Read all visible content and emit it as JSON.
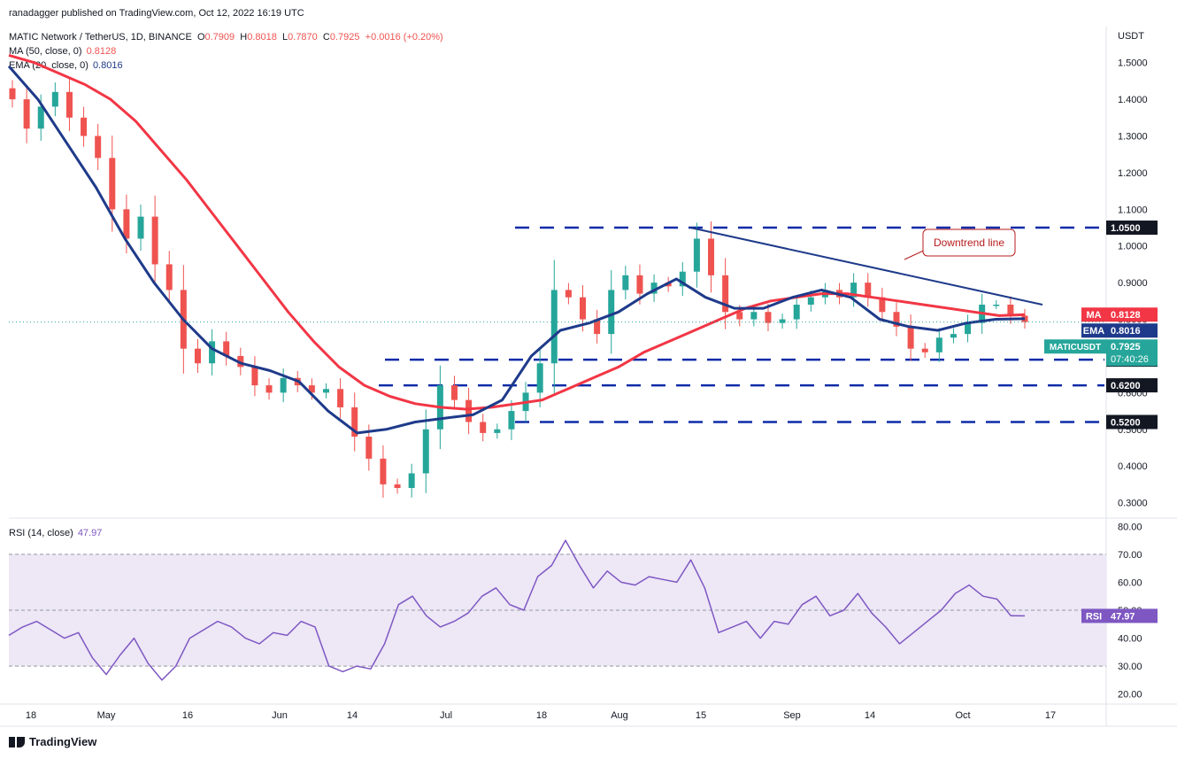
{
  "header": {
    "published": "ranadagger published on TradingView.com, Oct 12, 2022 16:19 UTC",
    "symbol": "MATIC Network / TetherUS, 1D, BINANCE",
    "ohlc": {
      "o_label": "O",
      "o": "0.7909",
      "h_label": "H",
      "h": "0.8018",
      "l_label": "L",
      "l": "0.7870",
      "c_label": "C",
      "c": "0.7925",
      "change": "+0.0016 (+0.20%)"
    },
    "ma_label": "MA (50, close, 0)",
    "ma_value": "0.8128",
    "ema_label": "EMA (20, close, 0)",
    "ema_value": "0.8016",
    "rsi_label": "RSI (14, close)",
    "rsi_value": "47.97"
  },
  "footer": {
    "brand": "TradingView"
  },
  "colors": {
    "up": "#26a69a",
    "down": "#ef5350",
    "ma": "#f23645",
    "ema": "#1e3a8a",
    "levels": "#0d2ca8",
    "rsi": "#7e57c2",
    "rsi_bg": "#ede7f6"
  },
  "chart_data": {
    "type": "line",
    "title": "",
    "price_axis_label": "USDT",
    "y_ticks": [
      "1.5000",
      "1.4000",
      "1.3000",
      "1.2000",
      "1.1000",
      "1.0000",
      "0.9000",
      "0.8000",
      "0.7000",
      "0.6000",
      "0.5000",
      "0.4000",
      "0.3000"
    ],
    "ylim": [
      0.27,
      1.55
    ],
    "x_ticks": [
      "18",
      "May",
      "16",
      "Jun",
      "14",
      "Jul",
      "18",
      "Aug",
      "15",
      "Sep",
      "14",
      "Oct",
      "17"
    ],
    "series": [
      {
        "name": "MATICUSDT",
        "values": [
          1.4,
          1.32,
          1.38,
          1.42,
          1.35,
          1.3,
          1.24,
          1.1,
          1.02,
          1.08,
          0.95,
          0.88,
          0.72,
          0.68,
          0.74,
          0.7,
          0.67,
          0.62,
          0.6,
          0.64,
          0.62,
          0.6,
          0.61,
          0.56,
          0.48,
          0.42,
          0.35,
          0.34,
          0.38,
          0.5,
          0.62,
          0.58,
          0.52,
          0.49,
          0.5,
          0.55,
          0.6,
          0.68,
          0.88,
          0.86,
          0.8,
          0.76,
          0.88,
          0.92,
          0.87,
          0.9,
          0.89,
          0.93,
          1.02,
          0.92,
          0.82,
          0.8,
          0.82,
          0.79,
          0.8,
          0.84,
          0.86,
          0.88,
          0.86,
          0.9,
          0.86,
          0.82,
          0.78,
          0.72,
          0.71,
          0.75,
          0.76,
          0.79,
          0.84,
          0.84,
          0.81,
          0.7925
        ]
      },
      {
        "name": "MA",
        "values": [
          1.52,
          1.5,
          1.47,
          1.44,
          1.4,
          1.34,
          1.26,
          1.18,
          1.09,
          1.0,
          0.91,
          0.82,
          0.74,
          0.67,
          0.62,
          0.59,
          0.57,
          0.56,
          0.555,
          0.56,
          0.57,
          0.58,
          0.61,
          0.64,
          0.67,
          0.71,
          0.74,
          0.77,
          0.8,
          0.83,
          0.85,
          0.86,
          0.87,
          0.87,
          0.86,
          0.85,
          0.84,
          0.83,
          0.82,
          0.81,
          0.8128
        ]
      },
      {
        "name": "EMA",
        "values": [
          1.49,
          1.4,
          1.28,
          1.16,
          1.02,
          0.9,
          0.8,
          0.72,
          0.68,
          0.66,
          0.63,
          0.55,
          0.49,
          0.5,
          0.52,
          0.53,
          0.54,
          0.58,
          0.7,
          0.77,
          0.79,
          0.82,
          0.87,
          0.91,
          0.86,
          0.83,
          0.83,
          0.86,
          0.88,
          0.86,
          0.8,
          0.78,
          0.77,
          0.79,
          0.8,
          0.8016
        ]
      }
    ],
    "levels": [
      {
        "value": 1.05,
        "label": "1.0500"
      },
      {
        "value": 0.69,
        "label": "0.6900"
      },
      {
        "value": 0.62,
        "label": "0.6200"
      },
      {
        "value": 0.52,
        "label": "0.5200"
      }
    ],
    "downtrend": {
      "start": 1.05,
      "end": 0.84
    },
    "annotation": "Downtrend line",
    "price_tags": {
      "ma": {
        "label": "MA",
        "value": "0.8128"
      },
      "ema": {
        "label": "EMA",
        "value": "0.8016"
      },
      "last": {
        "label": "MATICUSDT",
        "value": "0.7925",
        "countdown": "07:40:26"
      }
    },
    "rsi": {
      "y_ticks": [
        "80.00",
        "70.00",
        "60.00",
        "50.00",
        "40.00",
        "30.00",
        "20.00"
      ],
      "ylim": [
        18,
        82
      ],
      "band": [
        30,
        70
      ],
      "midline": 50,
      "values": [
        41,
        44,
        46,
        43,
        40,
        42,
        33,
        27,
        34,
        40,
        31,
        25,
        30,
        40,
        43,
        46,
        44,
        40,
        38,
        42,
        41,
        46,
        44,
        30,
        28,
        30,
        29,
        38,
        52,
        55,
        48,
        44,
        46,
        49,
        55,
        58,
        52,
        50,
        62,
        66,
        75,
        66,
        58,
        64,
        60,
        59,
        62,
        61,
        60,
        68,
        58,
        42,
        44,
        46,
        40,
        46,
        45,
        52,
        55,
        48,
        50,
        56,
        49,
        44,
        38,
        42,
        46,
        50,
        56,
        59,
        55,
        54,
        48,
        47.97
      ],
      "tag": {
        "label": "RSI",
        "value": "47.97"
      }
    }
  }
}
